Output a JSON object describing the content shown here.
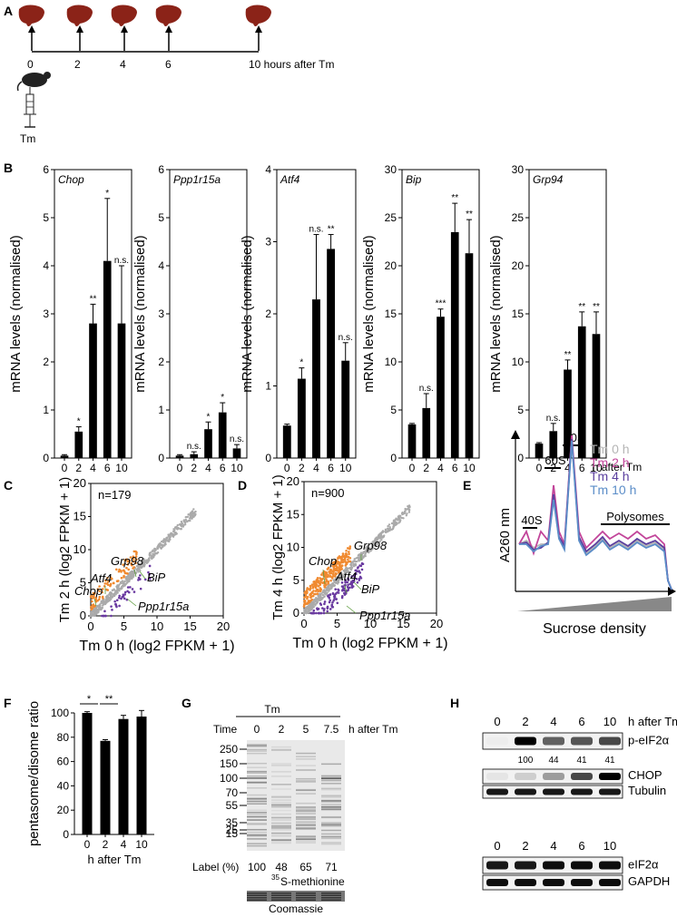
{
  "panel_letters": [
    "A",
    "B",
    "C",
    "D",
    "E",
    "F",
    "G",
    "H"
  ],
  "panelA": {
    "timepoints": [
      "0",
      "2",
      "4",
      "6"
    ],
    "last_label": "10 hours after Tm",
    "drug": "Tm",
    "colors": {
      "liver": "#8b2318"
    }
  },
  "panelB": {
    "ylabel": "mRNA levels (normalised)",
    "xaxis_suffix": "h after Tm",
    "categories": [
      "0",
      "2",
      "4",
      "6",
      "10"
    ]
  },
  "panelC": {
    "ylabel": "Tm 2 h (log2 FPKM + 1)",
    "xlabel": "Tm 0 h (log2 FPKM + 1)",
    "n_label": "n=179",
    "genes": [
      "Grp98",
      "Atf4",
      "Chop",
      "BiP",
      "Ppp1r15a"
    ]
  },
  "panelD": {
    "ylabel": "Tm 4 h (log2 FPKM + 1)",
    "xlabel": "Tm 0 h (log2 FPKM + 1)",
    "n_label": "n=900",
    "genes": [
      "Grp98",
      "Chop",
      "Atf4",
      "BiP",
      "Ppp1r15a"
    ]
  },
  "panelE": {
    "ylabel": "A260 nm",
    "xlabel": "Sucrose density",
    "peaks": [
      "80S",
      "60S",
      "40S",
      "Polysomes"
    ],
    "legend": [
      {
        "label": "Tm 0 h",
        "color": "#b5b5b5"
      },
      {
        "label": "Tm 2 h",
        "color": "#c2459a"
      },
      {
        "label": "Tm 4 h",
        "color": "#5b3f9e"
      },
      {
        "label": "Tm 10 h",
        "color": "#5b8dc8"
      }
    ]
  },
  "panelF": {
    "ylabel": "pentasome/disome ratio",
    "xlabel": "h after Tm",
    "sig": [
      "*",
      "**"
    ]
  },
  "panelG": {
    "treatment": "Tm",
    "time_label": "Time",
    "times": [
      "0",
      "2",
      "5",
      "7.5"
    ],
    "time_suffix": "h after Tm",
    "markers": [
      "250",
      "150",
      "100",
      "70",
      "55",
      "35",
      "25",
      "15"
    ],
    "label_title": "Label (%)",
    "label_values": [
      "100",
      "48",
      "65",
      "71"
    ],
    "methionine": "S-methionine",
    "isotope": "35",
    "coomassie": "Coomassie"
  },
  "panelH": {
    "times": [
      "0",
      "2",
      "4",
      "6",
      "10"
    ],
    "time_suffix": "h after Tm",
    "bands": [
      "p-eIF2α",
      "CHOP",
      "Tubulin",
      "eIF2α",
      "GAPDH"
    ],
    "quant": [
      "100",
      "44",
      "41",
      "41"
    ]
  },
  "chart_data": [
    {
      "type": "bar",
      "title": "Chop",
      "categories": [
        "0",
        "2",
        "4",
        "6",
        "10"
      ],
      "values": [
        0.05,
        0.55,
        2.8,
        4.1,
        2.8
      ],
      "errors": [
        0.02,
        0.1,
        0.4,
        1.3,
        1.2
      ],
      "sig": [
        "",
        "*",
        "**",
        "*",
        "n.s."
      ],
      "ylim": [
        0,
        6
      ],
      "yticks": [
        0,
        1,
        2,
        3,
        4,
        5,
        6
      ],
      "ylabel": "mRNA levels (normalised)",
      "xlabel": "h after Tm"
    },
    {
      "type": "bar",
      "title": "Ppp1r15a",
      "categories": [
        "0",
        "2",
        "4",
        "6",
        "10"
      ],
      "values": [
        0.05,
        0.08,
        0.6,
        0.95,
        0.2
      ],
      "errors": [
        0.02,
        0.05,
        0.15,
        0.2,
        0.08
      ],
      "sig": [
        "",
        "n.s.",
        "*",
        "*",
        "n.s."
      ],
      "ylim": [
        0,
        6
      ],
      "yticks": [
        0,
        1,
        2,
        3,
        4,
        5,
        6
      ],
      "ylabel": "mRNA levels (normalised)",
      "xlabel": "h after Tm"
    },
    {
      "type": "bar",
      "title": "Atf4",
      "categories": [
        "0",
        "2",
        "4",
        "6",
        "10"
      ],
      "values": [
        0.45,
        1.1,
        2.2,
        2.9,
        1.35
      ],
      "errors": [
        0.02,
        0.15,
        0.9,
        0.2,
        0.25
      ],
      "sig": [
        "",
        "*",
        "n.s.",
        "**",
        "n.s."
      ],
      "ylim": [
        0,
        4
      ],
      "yticks": [
        0,
        1,
        2,
        3,
        4
      ],
      "ylabel": "mRNA levels (normalised)",
      "xlabel": "h after Tm"
    },
    {
      "type": "bar",
      "title": "Bip",
      "categories": [
        "0",
        "2",
        "4",
        "6",
        "10"
      ],
      "values": [
        3.5,
        5.2,
        14.7,
        23.5,
        21.3
      ],
      "errors": [
        0.1,
        1.5,
        0.8,
        3.0,
        3.5
      ],
      "sig": [
        "",
        "n.s.",
        "***",
        "**",
        "**"
      ],
      "ylim": [
        0,
        30
      ],
      "yticks": [
        0,
        5,
        10,
        15,
        20,
        25,
        30
      ],
      "ylabel": "mRNA levels (normalised)",
      "xlabel": "h after Tm"
    },
    {
      "type": "bar",
      "title": "Grp94",
      "categories": [
        "0",
        "2",
        "4",
        "6",
        "10"
      ],
      "values": [
        1.5,
        2.8,
        9.2,
        13.7,
        12.9
      ],
      "errors": [
        0.1,
        0.8,
        1.0,
        1.5,
        2.3
      ],
      "sig": [
        "",
        "n.s.",
        "**",
        "**",
        "**"
      ],
      "ylim": [
        0,
        30
      ],
      "yticks": [
        0,
        5,
        10,
        15,
        20,
        25,
        30
      ],
      "ylabel": "mRNA levels (normalised)",
      "xlabel": "h after Tm"
    },
    {
      "type": "bar",
      "title": "",
      "categories": [
        "0",
        "2",
        "4",
        "10"
      ],
      "values": [
        100,
        77,
        95,
        97
      ],
      "errors": [
        1,
        1,
        3,
        5
      ],
      "ylim": [
        0,
        100
      ],
      "yticks": [
        0,
        20,
        40,
        60,
        80,
        100
      ],
      "ylabel": "pentasome/disome ratio",
      "xlabel": "h after Tm"
    },
    {
      "type": "scatter",
      "xlabel": "Tm 0 h (log2 FPKM + 1)",
      "ylabel": "Tm 2 h (log2 FPKM + 1)",
      "xlim": [
        0,
        20
      ],
      "ylim": [
        0,
        20
      ],
      "xticks": [
        0,
        5,
        10,
        15,
        20
      ],
      "yticks": [
        0,
        5,
        10,
        15,
        20
      ]
    },
    {
      "type": "scatter",
      "xlabel": "Tm 0 h (log2 FPKM + 1)",
      "ylabel": "Tm 4 h (log2 FPKM + 1)",
      "xlim": [
        0,
        20
      ],
      "ylim": [
        0,
        20
      ],
      "xticks": [
        0,
        5,
        10,
        15,
        20
      ],
      "yticks": [
        0,
        5,
        10,
        15,
        20
      ]
    }
  ]
}
